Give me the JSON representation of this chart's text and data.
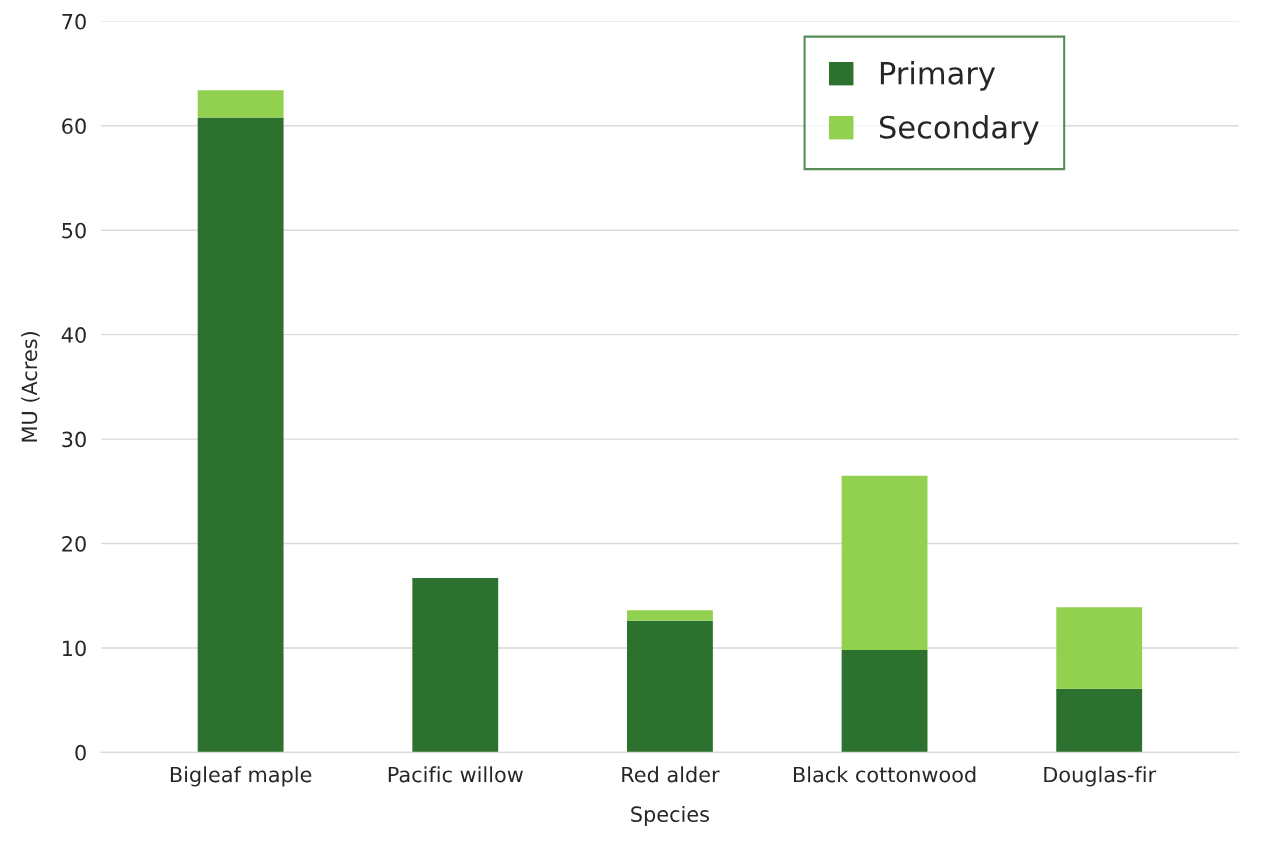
{
  "chart_data": {
    "type": "bar",
    "stacked": true,
    "xlabel": "Species",
    "ylabel": "MU (Acres)",
    "categories": [
      "Bigleaf maple",
      "Pacific willow",
      "Red alder",
      "Black cottonwood",
      "Douglas-fir"
    ],
    "series": [
      {
        "name": "Primary",
        "color": "#2d712e",
        "values": [
          60.8,
          16.7,
          12.6,
          9.8,
          6.1
        ]
      },
      {
        "name": "Secondary",
        "color": "#92d050",
        "values": [
          2.6,
          null,
          1.0,
          16.7,
          7.8
        ]
      }
    ],
    "ylim": [
      0,
      70
    ],
    "yticks": [
      0,
      10,
      20,
      30,
      40,
      50,
      60,
      70
    ],
    "grid": "y",
    "legend": "top right"
  }
}
